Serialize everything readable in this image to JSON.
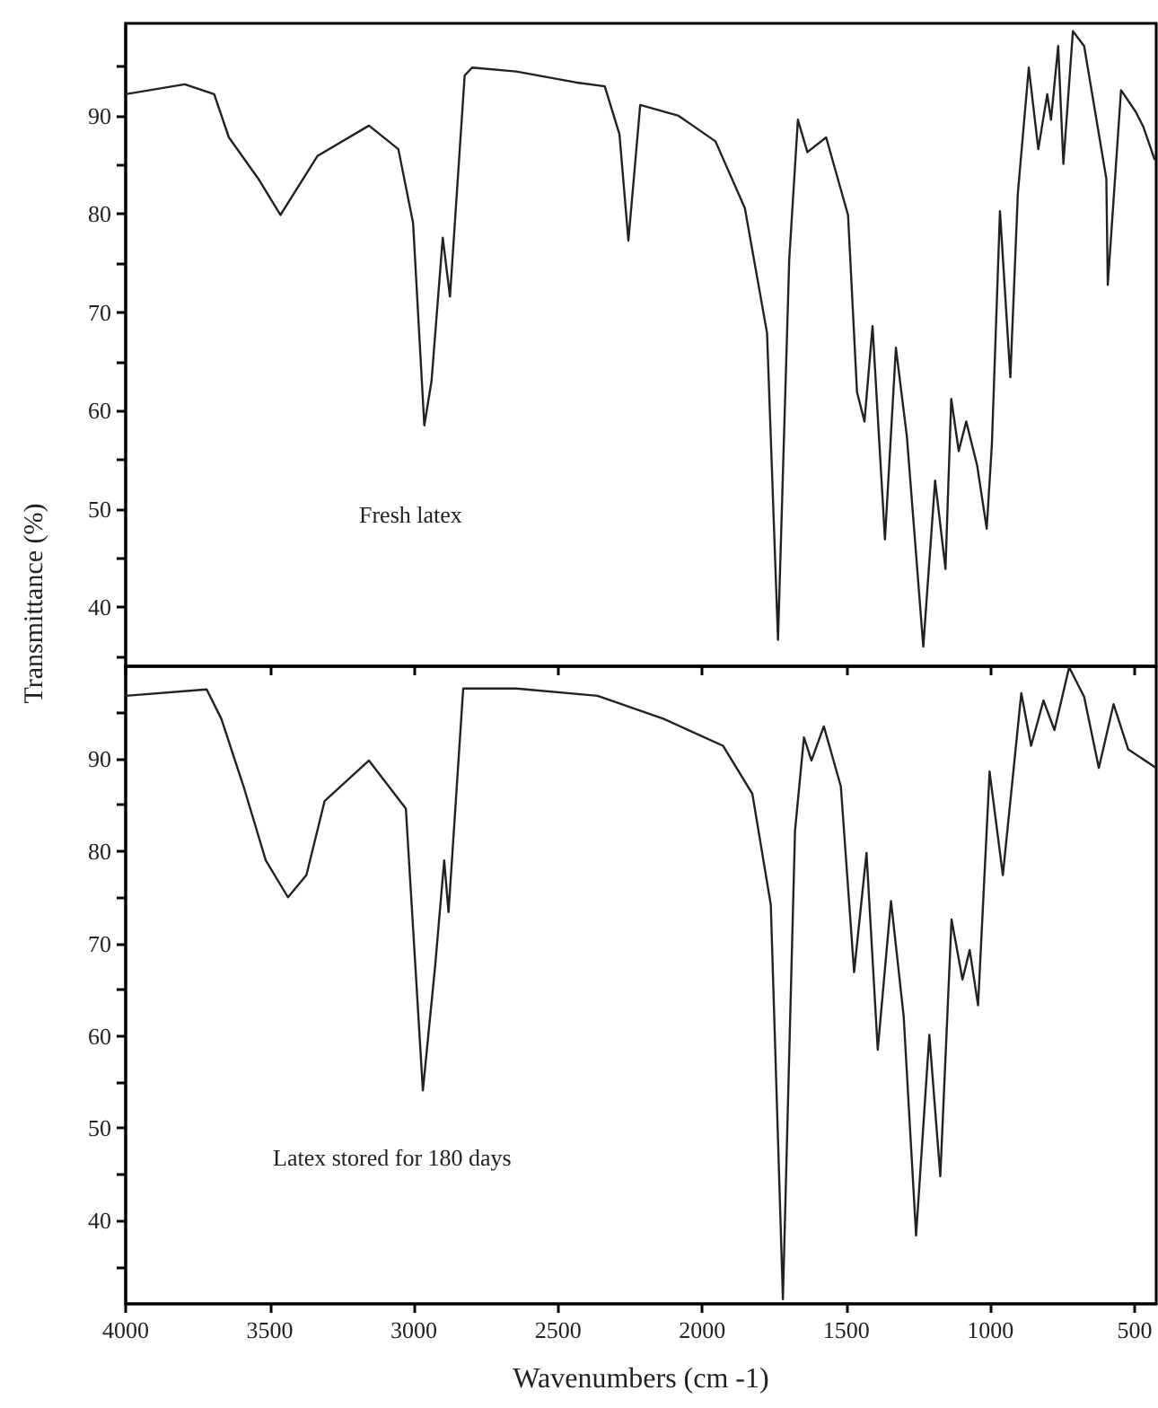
{
  "chart_data": [
    {
      "type": "line",
      "ylabel": "Transmittance (%)",
      "annotations": [
        "Fresh latex"
      ],
      "xlim": [
        4000,
        425
      ],
      "ylim": [
        34,
        99.4
      ],
      "xticks": [
        4000,
        3500,
        3000,
        2500,
        2000,
        1500,
        1000,
        500
      ],
      "yticks": [
        {
          "value": 35,
          "label": null
        },
        40,
        {
          "value": 45,
          "label": null
        },
        50,
        {
          "value": 55,
          "label": null
        },
        60,
        {
          "value": 65,
          "label": null
        },
        70,
        {
          "value": 75,
          "label": null
        },
        80,
        {
          "value": 85,
          "label": null
        },
        90,
        {
          "value": 95,
          "label": null
        }
      ],
      "tick_labels": "y",
      "marker": "none",
      "line_style": "solid",
      "series": [
        {
          "color": "#222222",
          "x": [
            4000,
            3795,
            3693,
            3642,
            3540,
            3463,
            3335,
            3156,
            3054,
            3003,
            2964,
            2939,
            2900,
            2875,
            2824,
            2798,
            2645,
            2440,
            2338,
            2287,
            2256,
            2215,
            2082,
            1954,
            1852,
            1775,
            1737,
            1698,
            1668,
            1635,
            1570,
            1494,
            1463,
            1437,
            1409,
            1366,
            1328,
            1290,
            1233,
            1192,
            1156,
            1136,
            1110,
            1084,
            1046,
            1013,
            995,
            967,
            931,
            905,
            867,
            834,
            803,
            790,
            765,
            747,
            714,
            675,
            598,
            593,
            547,
            496,
            470,
            430
          ],
          "values": [
            92.2,
            93.2,
            92.2,
            87.8,
            83.6,
            79.9,
            85.9,
            89.0,
            86.6,
            79.1,
            58.5,
            63.0,
            77.6,
            71.6,
            94.1,
            94.9,
            94.5,
            93.4,
            93.0,
            88.1,
            77.3,
            91.1,
            90.0,
            87.4,
            80.6,
            67.9,
            36.7,
            75.4,
            89.6,
            86.3,
            87.8,
            79.9,
            61.9,
            58.9,
            68.6,
            46.9,
            66.4,
            57.4,
            36.0,
            52.9,
            43.9,
            61.2,
            55.9,
            58.9,
            54.4,
            48.0,
            56.6,
            80.3,
            63.4,
            82.1,
            94.9,
            86.6,
            92.2,
            89.6,
            97.1,
            85.1,
            98.6,
            97.1,
            83.6,
            72.8,
            92.6,
            90.4,
            88.9,
            85.5
          ]
        }
      ]
    },
    {
      "type": "line",
      "xlabel": "Wavenumbers (cm -1)",
      "annotations": [
        "Latex stored for 180 days"
      ],
      "xlim": [
        4000,
        425
      ],
      "ylim": [
        31,
        100
      ],
      "xticks": [
        4000,
        3500,
        3000,
        2500,
        2000,
        1500,
        1000,
        500
      ],
      "yticks": [
        {
          "value": 35,
          "label": null
        },
        40,
        {
          "value": 45,
          "label": null
        },
        50,
        {
          "value": 55,
          "label": null
        },
        60,
        {
          "value": 65,
          "label": null
        },
        70,
        {
          "value": 75,
          "label": null
        },
        80,
        {
          "value": 85,
          "label": null
        },
        90,
        {
          "value": 95,
          "label": null
        }
      ],
      "marker": "none",
      "line_style": "solid",
      "series": [
        {
          "color": "#222222",
          "x": [
            4000,
            3719,
            3668,
            3591,
            3514,
            3437,
            3373,
            3310,
            3156,
            3028,
            2969,
            2926,
            2895,
            2880,
            2829,
            2645,
            2363,
            2133,
            1928,
            1826,
            1762,
            1720,
            1678,
            1647,
            1621,
            1578,
            1519,
            1473,
            1430,
            1391,
            1345,
            1301,
            1258,
            1212,
            1174,
            1135,
            1097,
            1072,
            1043,
            1003,
            957,
            893,
            859,
            816,
            778,
            727,
            675,
            624,
            573,
            522,
            425
          ],
          "values": [
            96.8,
            97.5,
            94.3,
            87.0,
            79.0,
            75.0,
            77.4,
            85.4,
            89.8,
            84.6,
            54.1,
            67.7,
            79.0,
            73.4,
            97.6,
            97.6,
            96.8,
            94.3,
            91.4,
            86.2,
            74.2,
            31.5,
            82.2,
            92.3,
            89.8,
            93.5,
            87.0,
            66.9,
            79.8,
            58.5,
            74.6,
            62.1,
            38.4,
            60.1,
            44.8,
            72.6,
            66.1,
            69.3,
            63.3,
            88.6,
            77.4,
            97.1,
            91.4,
            96.3,
            93.1,
            99.9,
            96.7,
            89.0,
            95.9,
            91.0,
            89.0
          ]
        }
      ]
    }
  ]
}
